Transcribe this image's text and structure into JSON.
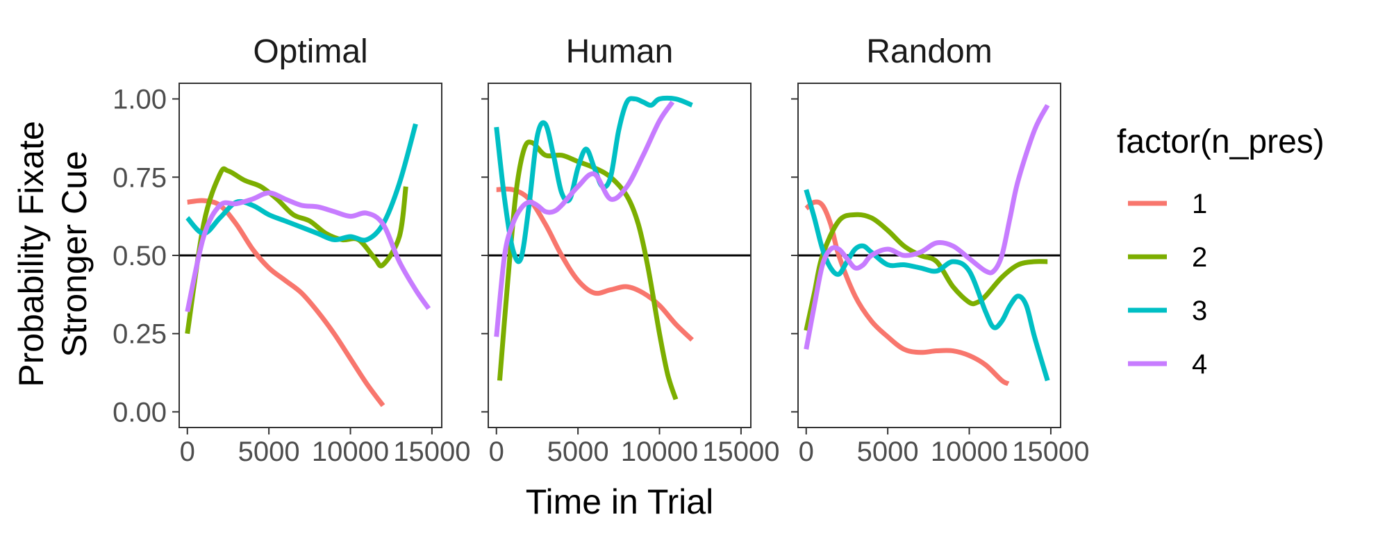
{
  "chart_data": {
    "type": "line",
    "facets": [
      "Optimal",
      "Human",
      "Random"
    ],
    "xlabel": "Time in Trial",
    "ylabel_lines": [
      "Probability Fixate",
      "Stronger Cue"
    ],
    "xlim": [
      -500,
      15600
    ],
    "ylim": [
      -0.05,
      1.05
    ],
    "x_ticks": [
      0,
      5000,
      10000,
      15000
    ],
    "x_tick_labels": [
      "0",
      "5000",
      "10000",
      "15000"
    ],
    "y_ticks": [
      0,
      0.25,
      0.5,
      0.75,
      1
    ],
    "y_tick_labels": [
      "0.00",
      "0.25",
      "0.50",
      "0.75",
      "1.00"
    ],
    "hline": 0.5,
    "legend": {
      "title": "factor(n_pres)",
      "position": "right",
      "entries": [
        {
          "label": "1",
          "color": "#F8766D"
        },
        {
          "label": "2",
          "color": "#7CAE00"
        },
        {
          "label": "3",
          "color": "#00BFC4"
        },
        {
          "label": "4",
          "color": "#C77CFF"
        }
      ]
    },
    "panels": [
      {
        "facet": "Optimal",
        "series": [
          {
            "level": "1",
            "x": [
              0,
              1000,
              2000,
              3000,
              4000,
              5000,
              6000,
              7000,
              8000,
              9000,
              10000,
              11000,
              12000
            ],
            "y": [
              0.67,
              0.675,
              0.66,
              0.6,
              0.52,
              0.46,
              0.42,
              0.38,
              0.32,
              0.25,
              0.17,
              0.09,
              0.02
            ]
          },
          {
            "level": "2",
            "x": [
              0,
              1000,
              2000,
              2500,
              3500,
              4500,
              5500,
              6500,
              7500,
              8500,
              9500,
              10500,
              11500,
              12000,
              13000,
              13400
            ],
            "y": [
              0.25,
              0.6,
              0.76,
              0.77,
              0.74,
              0.72,
              0.68,
              0.63,
              0.61,
              0.57,
              0.55,
              0.55,
              0.49,
              0.47,
              0.56,
              0.72
            ]
          },
          {
            "level": "3",
            "x": [
              0,
              1000,
              2000,
              3000,
              4000,
              5000,
              6000,
              7000,
              8000,
              9000,
              10000,
              11000,
              12000,
              13000,
              14000
            ],
            "y": [
              0.62,
              0.57,
              0.62,
              0.67,
              0.66,
              0.63,
              0.61,
              0.59,
              0.57,
              0.55,
              0.56,
              0.55,
              0.6,
              0.73,
              0.92
            ]
          },
          {
            "level": "4",
            "x": [
              0,
              1000,
              2000,
              3000,
              4000,
              5000,
              6000,
              7000,
              8000,
              9000,
              10000,
              11000,
              12000,
              13000,
              14000,
              14800
            ],
            "y": [
              0.32,
              0.56,
              0.66,
              0.665,
              0.68,
              0.7,
              0.68,
              0.66,
              0.655,
              0.64,
              0.625,
              0.635,
              0.6,
              0.48,
              0.39,
              0.33
            ]
          }
        ]
      },
      {
        "facet": "Human",
        "series": [
          {
            "level": "1",
            "x": [
              0,
              1000,
              2000,
              3000,
              4000,
              5000,
              6000,
              7000,
              8000,
              9000,
              10000,
              11000,
              12000
            ],
            "y": [
              0.71,
              0.71,
              0.68,
              0.6,
              0.5,
              0.42,
              0.38,
              0.39,
              0.4,
              0.38,
              0.34,
              0.28,
              0.23
            ]
          },
          {
            "level": "2",
            "x": [
              200,
              700,
              1200,
              1700,
              2200,
              3000,
              4000,
              5000,
              6000,
              7000,
              8000,
              8700,
              9300,
              10000,
              10500,
              11000
            ],
            "y": [
              0.1,
              0.42,
              0.7,
              0.84,
              0.86,
              0.82,
              0.82,
              0.8,
              0.78,
              0.75,
              0.69,
              0.6,
              0.46,
              0.25,
              0.12,
              0.04
            ]
          },
          {
            "level": "3",
            "x": [
              0,
              500,
              1000,
              1500,
              2000,
              2500,
              3000,
              3500,
              4000,
              4500,
              5000,
              5500,
              6000,
              6500,
              7000,
              7500,
              8000,
              8500,
              9000,
              9500,
              10000,
              11000,
              12000
            ],
            "y": [
              0.91,
              0.68,
              0.52,
              0.49,
              0.66,
              0.88,
              0.92,
              0.82,
              0.7,
              0.68,
              0.78,
              0.84,
              0.78,
              0.72,
              0.75,
              0.9,
              0.99,
              1.0,
              0.99,
              0.98,
              1.0,
              1.0,
              0.98
            ]
          },
          {
            "level": "4",
            "x": [
              0,
              500,
              1000,
              1500,
              2000,
              2500,
              3000,
              3500,
              4000,
              5000,
              6000,
              7000,
              8000,
              9000,
              10000,
              10800
            ],
            "y": [
              0.24,
              0.5,
              0.6,
              0.65,
              0.67,
              0.66,
              0.64,
              0.64,
              0.66,
              0.72,
              0.76,
              0.68,
              0.72,
              0.82,
              0.93,
              0.99
            ]
          }
        ]
      },
      {
        "facet": "Random",
        "series": [
          {
            "level": "1",
            "x": [
              0,
              500,
              1000,
              1500,
              2000,
              3000,
              4000,
              5000,
              6000,
              7000,
              8000,
              9000,
              10000,
              11000,
              12000,
              12400
            ],
            "y": [
              0.65,
              0.67,
              0.66,
              0.6,
              0.5,
              0.37,
              0.29,
              0.24,
              0.2,
              0.19,
              0.195,
              0.195,
              0.18,
              0.15,
              0.1,
              0.09
            ]
          },
          {
            "level": "2",
            "x": [
              0,
              500,
              1000,
              2000,
              3000,
              4000,
              5000,
              6000,
              7000,
              8000,
              9000,
              10000,
              10500,
              11000,
              12000,
              13000,
              14000,
              14800
            ],
            "y": [
              0.26,
              0.38,
              0.5,
              0.61,
              0.63,
              0.62,
              0.58,
              0.53,
              0.5,
              0.48,
              0.4,
              0.35,
              0.35,
              0.37,
              0.43,
              0.47,
              0.48,
              0.48
            ]
          },
          {
            "level": "3",
            "x": [
              0,
              500,
              1000,
              1500,
              2000,
              2500,
              3000,
              3500,
              4000,
              5000,
              6000,
              7000,
              8000,
              9000,
              10000,
              11000,
              11500,
              12000,
              12500,
              13000,
              13500,
              14000,
              14800
            ],
            "y": [
              0.71,
              0.62,
              0.52,
              0.46,
              0.44,
              0.48,
              0.52,
              0.53,
              0.51,
              0.47,
              0.47,
              0.46,
              0.45,
              0.48,
              0.45,
              0.32,
              0.27,
              0.29,
              0.34,
              0.37,
              0.34,
              0.24,
              0.1
            ]
          },
          {
            "level": "4",
            "x": [
              0,
              500,
              1000,
              1500,
              2000,
              2500,
              3000,
              3500,
              4000,
              5000,
              6000,
              7000,
              8000,
              9000,
              10000,
              11000,
              11500,
              12000,
              12500,
              13000,
              14000,
              14800
            ],
            "y": [
              0.2,
              0.34,
              0.47,
              0.52,
              0.52,
              0.49,
              0.46,
              0.47,
              0.5,
              0.52,
              0.5,
              0.51,
              0.54,
              0.53,
              0.49,
              0.45,
              0.45,
              0.5,
              0.62,
              0.74,
              0.9,
              0.98
            ]
          }
        ]
      }
    ]
  }
}
